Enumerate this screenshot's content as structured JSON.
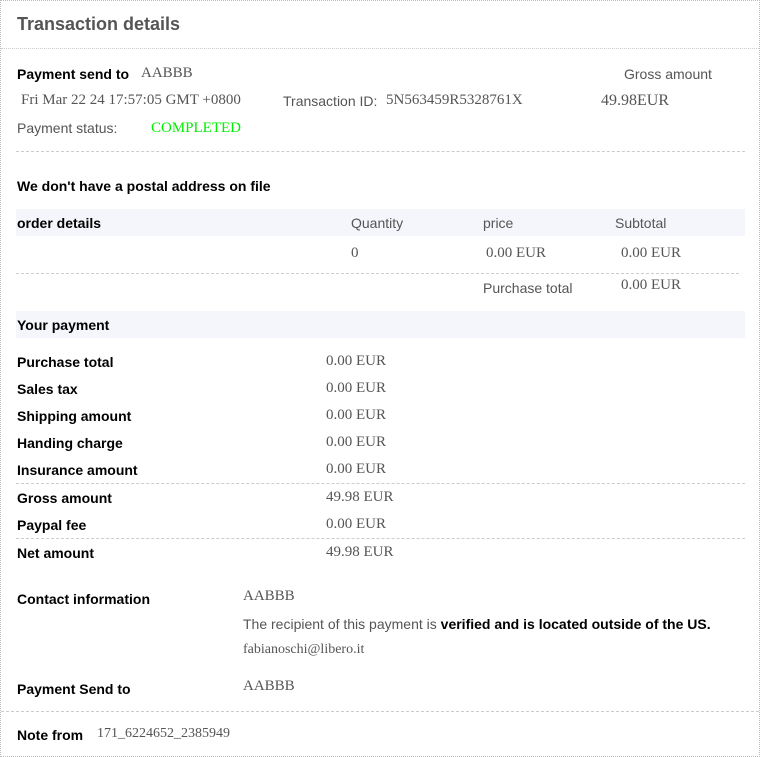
{
  "title": "Transaction details",
  "summary": {
    "send_to_label": "Payment send to",
    "send_to_value": "AABBB",
    "date": "Fri Mar 22 24 17:57:05 GMT +0800",
    "txn_label": "Transaction ID:",
    "txn_value": "5N563459R5328761X",
    "gross_label": "Gross amount",
    "gross_value": "49.98EUR",
    "status_label": "Payment status:",
    "status_value": "COMPLETED",
    "status_color": "#00ee00"
  },
  "postal_note": "We don't have a postal address on file",
  "order": {
    "header": {
      "name": "order details",
      "quantity": "Quantity",
      "price": "price",
      "subtotal": "Subtotal"
    },
    "rows": [
      {
        "quantity": "0",
        "price": "0.00 EUR",
        "subtotal": "0.00 EUR"
      }
    ],
    "total_label": "Purchase total",
    "total_value": "0.00 EUR"
  },
  "payment": {
    "header": "Your payment",
    "rows": [
      {
        "label": "Purchase total",
        "value": "0.00 EUR"
      },
      {
        "label": "Sales tax",
        "value": "0.00 EUR"
      },
      {
        "label": "Shipping amount",
        "value": "0.00 EUR"
      },
      {
        "label": "Handing charge",
        "value": "0.00 EUR"
      },
      {
        "label": "Insurance amount",
        "value": "0.00 EUR"
      },
      {
        "label": "Gross amount",
        "value": "49.98 EUR"
      },
      {
        "label": "Paypal fee",
        "value": "0.00 EUR"
      },
      {
        "label": "Net amount",
        "value": "49.98 EUR"
      }
    ]
  },
  "contact": {
    "label": "Contact information",
    "name": "AABBB",
    "verified_prefix": "The recipient of this payment is ",
    "verified_bold": "verified and is located outside of the US.",
    "email": "fabianoschi@libero.it"
  },
  "send_to": {
    "label": "Payment Send to",
    "value": "AABBB"
  },
  "note": {
    "label": "Note from",
    "value": "171_6224652_2385949"
  }
}
